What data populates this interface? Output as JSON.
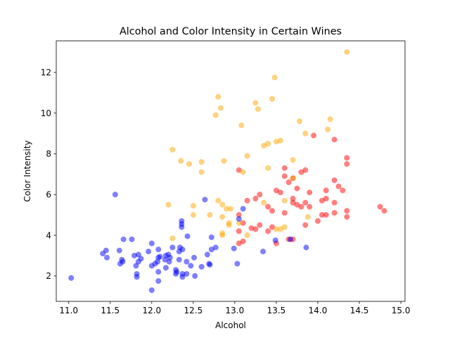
{
  "chart_data": {
    "type": "scatter",
    "title": "Alcohol and Color Intensity in Certain Wines",
    "xlabel": "Alcohol",
    "ylabel": "Color Intensity",
    "xlim": [
      10.85,
      15.05
    ],
    "ylim": [
      0.75,
      13.55
    ],
    "xticks": [
      11.0,
      11.5,
      12.0,
      12.5,
      13.0,
      13.5,
      14.0,
      14.5,
      15.0
    ],
    "xtick_labels": [
      "11.0",
      "11.5",
      "12.0",
      "12.5",
      "13.0",
      "13.5",
      "14.0",
      "14.5",
      "15.0"
    ],
    "yticks": [
      2,
      4,
      6,
      8,
      10,
      12
    ],
    "ytick_labels": [
      "2",
      "4",
      "6",
      "8",
      "10",
      "12"
    ],
    "grid": false,
    "legend": "none",
    "marker_alpha": 0.5,
    "series": [
      {
        "color": "#ff0000",
        "points": [
          [
            13.05,
            7.2
          ],
          [
            13.3,
            6.0
          ],
          [
            13.5,
            6.2
          ],
          [
            13.55,
            6.1
          ],
          [
            13.6,
            6.9
          ],
          [
            13.6,
            7.3
          ],
          [
            13.65,
            6.6
          ],
          [
            13.7,
            5.8
          ],
          [
            13.7,
            6.8
          ],
          [
            13.75,
            6.3
          ],
          [
            13.8,
            7.1
          ],
          [
            13.85,
            7.2
          ],
          [
            13.9,
            6.1
          ],
          [
            13.95,
            8.9
          ],
          [
            14.05,
            5.7
          ],
          [
            14.1,
            6.2
          ],
          [
            14.1,
            5.8
          ],
          [
            14.2,
            6.7
          ],
          [
            14.2,
            8.7
          ],
          [
            14.25,
            6.4
          ],
          [
            14.35,
            7.8
          ],
          [
            14.35,
            7.5
          ],
          [
            14.3,
            6.2
          ],
          [
            14.75,
            5.4
          ],
          [
            14.8,
            5.2
          ],
          [
            13.15,
            5.7
          ],
          [
            13.25,
            5.8
          ],
          [
            13.4,
            5.4
          ],
          [
            13.45,
            5.2
          ],
          [
            13.6,
            5.1
          ],
          [
            13.7,
            5.6
          ],
          [
            13.75,
            5.5
          ],
          [
            13.8,
            5.4
          ],
          [
            13.85,
            5.6
          ],
          [
            13.9,
            5.4
          ],
          [
            14.05,
            5.0
          ],
          [
            14.1,
            5.0
          ],
          [
            14.2,
            5.1
          ],
          [
            14.2,
            5.6
          ],
          [
            14.35,
            5.2
          ],
          [
            14.35,
            4.9
          ],
          [
            14.0,
            4.7
          ],
          [
            13.05,
            5.0
          ],
          [
            13.1,
            4.6
          ],
          [
            13.2,
            4.35
          ],
          [
            13.25,
            4.3
          ],
          [
            13.3,
            4.5
          ],
          [
            13.4,
            4.2
          ],
          [
            13.45,
            4.4
          ],
          [
            13.5,
            3.6
          ],
          [
            13.65,
            3.8
          ],
          [
            13.7,
            3.8
          ],
          [
            13.85,
            4.5
          ],
          [
            13.05,
            3.6
          ],
          [
            13.1,
            3.7
          ],
          [
            13.05,
            4.2
          ]
        ]
      },
      {
        "color": "#ffa500",
        "points": [
          [
            14.35,
            13.0
          ],
          [
            13.48,
            11.75
          ],
          [
            12.8,
            10.8
          ],
          [
            13.25,
            10.5
          ],
          [
            13.45,
            10.7
          ],
          [
            12.83,
            10.25
          ],
          [
            13.28,
            10.2
          ],
          [
            12.77,
            9.9
          ],
          [
            14.15,
            9.7
          ],
          [
            13.08,
            9.4
          ],
          [
            13.78,
            9.6
          ],
          [
            14.12,
            9.2
          ],
          [
            13.85,
            9.0
          ],
          [
            13.15,
            7.9
          ],
          [
            13.5,
            8.6
          ],
          [
            13.55,
            8.65
          ],
          [
            13.35,
            8.4
          ],
          [
            13.4,
            8.5
          ],
          [
            12.25,
            8.2
          ],
          [
            12.35,
            7.65
          ],
          [
            12.45,
            7.5
          ],
          [
            12.6,
            7.6
          ],
          [
            12.6,
            7.1
          ],
          [
            12.87,
            7.65
          ],
          [
            13.1,
            7.1
          ],
          [
            13.4,
            7.3
          ],
          [
            13.7,
            7.7
          ],
          [
            13.7,
            6.8
          ],
          [
            12.8,
            5.7
          ],
          [
            12.85,
            5.5
          ],
          [
            12.9,
            5.3
          ],
          [
            12.95,
            5.3
          ],
          [
            12.85,
            4.9
          ],
          [
            12.7,
            5.0
          ],
          [
            12.5,
            5.0
          ],
          [
            12.5,
            5.45
          ],
          [
            12.2,
            5.5
          ],
          [
            13.35,
            5.6
          ],
          [
            13.6,
            5.7
          ],
          [
            13.15,
            4.0
          ],
          [
            12.93,
            4.5
          ],
          [
            12.93,
            4.6
          ],
          [
            12.85,
            4.0
          ],
          [
            12.85,
            4.1
          ],
          [
            12.25,
            3.85
          ],
          [
            13.5,
            4.3
          ],
          [
            13.6,
            4.4
          ],
          [
            13.88,
            4.9
          ],
          [
            13.05,
            4.6
          ],
          [
            13.55,
            4.3
          ]
        ]
      },
      {
        "color": "#0000ff",
        "points": [
          [
            11.03,
            1.9
          ],
          [
            11.41,
            3.1
          ],
          [
            11.45,
            3.25
          ],
          [
            11.46,
            2.9
          ],
          [
            11.56,
            6.0
          ],
          [
            11.61,
            3.25
          ],
          [
            11.62,
            2.6
          ],
          [
            11.64,
            2.8
          ],
          [
            11.65,
            2.7
          ],
          [
            11.66,
            3.8
          ],
          [
            11.76,
            3.8
          ],
          [
            11.79,
            3.0
          ],
          [
            11.81,
            2.5
          ],
          [
            11.82,
            2.1
          ],
          [
            11.82,
            1.95
          ],
          [
            11.84,
            3.05
          ],
          [
            11.84,
            2.7
          ],
          [
            11.87,
            2.85
          ],
          [
            11.96,
            3.2
          ],
          [
            12.0,
            3.6
          ],
          [
            12.0,
            2.5
          ],
          [
            12.0,
            1.3
          ],
          [
            12.04,
            2.6
          ],
          [
            12.07,
            2.7
          ],
          [
            12.08,
            2.2
          ],
          [
            12.08,
            1.75
          ],
          [
            12.08,
            3.3
          ],
          [
            12.08,
            2.9
          ],
          [
            12.16,
            2.8
          ],
          [
            12.17,
            2.4
          ],
          [
            12.17,
            3.0
          ],
          [
            12.21,
            2.7
          ],
          [
            12.22,
            2.9
          ],
          [
            12.25,
            3.4
          ],
          [
            12.29,
            2.3
          ],
          [
            12.29,
            2.1
          ],
          [
            12.33,
            3.2
          ],
          [
            12.33,
            2.8
          ],
          [
            12.34,
            3.4
          ],
          [
            12.36,
            4.7
          ],
          [
            12.36,
            4.55
          ],
          [
            12.36,
            4.4
          ],
          [
            12.37,
            2.1
          ],
          [
            12.37,
            1.95
          ],
          [
            12.42,
            2.1
          ],
          [
            12.42,
            2.7
          ],
          [
            12.43,
            3.95
          ],
          [
            12.47,
            2.5
          ],
          [
            12.51,
            2.9
          ],
          [
            12.52,
            2.0
          ],
          [
            12.6,
            2.45
          ],
          [
            12.64,
            5.75
          ],
          [
            12.67,
            3.05
          ],
          [
            12.69,
            2.6
          ],
          [
            12.7,
            2.55
          ],
          [
            12.72,
            3.9
          ],
          [
            12.72,
            3.3
          ],
          [
            12.77,
            3.4
          ],
          [
            12.99,
            3.35
          ],
          [
            13.03,
            2.6
          ],
          [
            13.05,
            4.8
          ],
          [
            13.1,
            5.3
          ],
          [
            13.34,
            3.2
          ],
          [
            13.49,
            3.75
          ],
          [
            13.67,
            3.8
          ],
          [
            13.86,
            3.4
          ],
          [
            12.37,
            3.3
          ],
          [
            12.2,
            3.05
          ],
          [
            12.1,
            2.95
          ],
          [
            12.3,
            2.2
          ]
        ]
      }
    ]
  }
}
